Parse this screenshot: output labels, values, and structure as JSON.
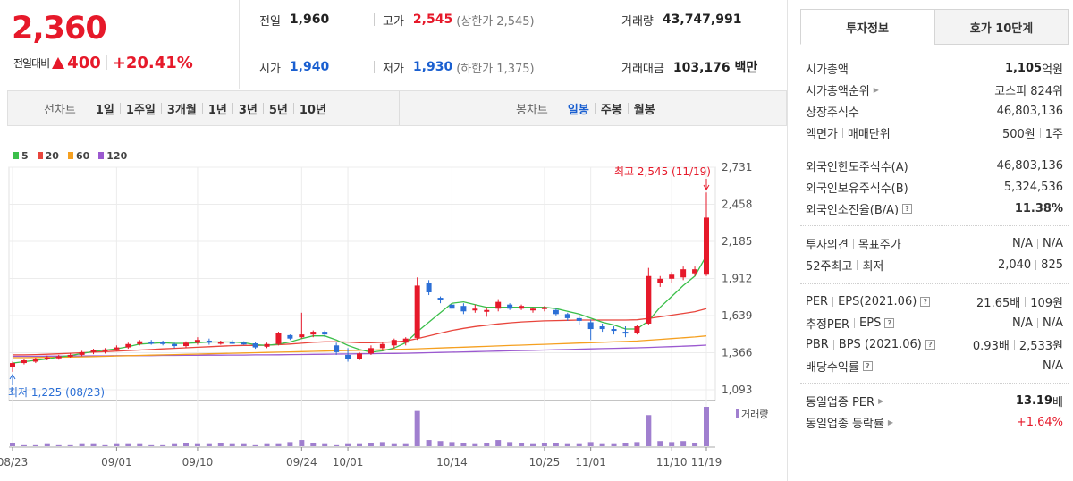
{
  "quote": {
    "price": "2,360",
    "change_label": "전일대비",
    "change": "400",
    "change_rate": "+20.41%",
    "prev_label": "전일",
    "prev": "1,960",
    "high_label": "고가",
    "high": "2,545",
    "upper_limit": "(상한가 2,545)",
    "volume_label": "거래량",
    "volume": "43,747,991",
    "open_label": "시가",
    "open": "1,940",
    "low_label": "저가",
    "low": "1,930",
    "lower_limit": "(하한가 1,375)",
    "amount_label": "거래대금",
    "amount": "103,176 백만"
  },
  "toolbar": {
    "line_label": "선차트",
    "line_periods": [
      "1일",
      "1주일",
      "3개월",
      "1년",
      "3년",
      "5년",
      "10년"
    ],
    "candle_label": "봉차트",
    "candle_periods": [
      "일봉",
      "주봉",
      "월봉"
    ],
    "active_candle": "일봉"
  },
  "legend": [
    {
      "label": "5",
      "color": "#3bbf4a"
    },
    {
      "label": "20",
      "color": "#e8453c"
    },
    {
      "label": "60",
      "color": "#f5a020"
    },
    {
      "label": "120",
      "color": "#9b59d0"
    }
  ],
  "chart_data": {
    "type": "candlestick",
    "y_ticks": [
      "2,731",
      "2,458",
      "2,185",
      "1,912",
      "1,639",
      "1,366",
      "1,093"
    ],
    "ylim": [
      1093,
      2731
    ],
    "x_labels": [
      "08/23",
      "09/01",
      "09/10",
      "09/24",
      "10/01",
      "10/14",
      "10/25",
      "11/01",
      "11/10",
      "11/19"
    ],
    "max_annotation": "최고 2,545 (11/19)",
    "min_annotation": "최저 1,225 (08/23)",
    "volume_label": "거래량",
    "up_color": "#e6192a",
    "down_color": "#2b6fd6",
    "candles": [
      {
        "o": 1260,
        "h": 1300,
        "l": 1225,
        "c": 1290
      },
      {
        "o": 1290,
        "h": 1320,
        "l": 1280,
        "c": 1310
      },
      {
        "o": 1300,
        "h": 1330,
        "l": 1290,
        "c": 1320
      },
      {
        "o": 1320,
        "h": 1345,
        "l": 1310,
        "c": 1330
      },
      {
        "o": 1325,
        "h": 1350,
        "l": 1315,
        "c": 1340
      },
      {
        "o": 1340,
        "h": 1365,
        "l": 1330,
        "c": 1350
      },
      {
        "o": 1350,
        "h": 1380,
        "l": 1340,
        "c": 1370
      },
      {
        "o": 1370,
        "h": 1395,
        "l": 1355,
        "c": 1385
      },
      {
        "o": 1380,
        "h": 1400,
        "l": 1360,
        "c": 1390
      },
      {
        "o": 1390,
        "h": 1420,
        "l": 1380,
        "c": 1405
      },
      {
        "o": 1405,
        "h": 1440,
        "l": 1395,
        "c": 1430
      },
      {
        "o": 1430,
        "h": 1460,
        "l": 1420,
        "c": 1450
      },
      {
        "o": 1445,
        "h": 1460,
        "l": 1425,
        "c": 1440
      },
      {
        "o": 1445,
        "h": 1455,
        "l": 1420,
        "c": 1430
      },
      {
        "o": 1430,
        "h": 1440,
        "l": 1400,
        "c": 1415
      },
      {
        "o": 1415,
        "h": 1450,
        "l": 1405,
        "c": 1440
      },
      {
        "o": 1440,
        "h": 1480,
        "l": 1425,
        "c": 1460
      },
      {
        "o": 1455,
        "h": 1470,
        "l": 1425,
        "c": 1440
      },
      {
        "o": 1440,
        "h": 1455,
        "l": 1425,
        "c": 1445
      },
      {
        "o": 1445,
        "h": 1460,
        "l": 1430,
        "c": 1440
      },
      {
        "o": 1440,
        "h": 1450,
        "l": 1425,
        "c": 1435
      },
      {
        "o": 1435,
        "h": 1445,
        "l": 1395,
        "c": 1405
      },
      {
        "o": 1410,
        "h": 1440,
        "l": 1400,
        "c": 1430
      },
      {
        "o": 1430,
        "h": 1520,
        "l": 1420,
        "c": 1510
      },
      {
        "o": 1495,
        "h": 1500,
        "l": 1460,
        "c": 1470
      },
      {
        "o": 1480,
        "h": 1660,
        "l": 1470,
        "c": 1500
      },
      {
        "o": 1500,
        "h": 1530,
        "l": 1480,
        "c": 1520
      },
      {
        "o": 1520,
        "h": 1530,
        "l": 1480,
        "c": 1500
      },
      {
        "o": 1420,
        "h": 1440,
        "l": 1350,
        "c": 1370
      },
      {
        "o": 1350,
        "h": 1400,
        "l": 1300,
        "c": 1320
      },
      {
        "o": 1320,
        "h": 1370,
        "l": 1310,
        "c": 1360
      },
      {
        "o": 1360,
        "h": 1420,
        "l": 1350,
        "c": 1400
      },
      {
        "o": 1400,
        "h": 1440,
        "l": 1380,
        "c": 1430
      },
      {
        "o": 1420,
        "h": 1470,
        "l": 1400,
        "c": 1460
      },
      {
        "o": 1440,
        "h": 1480,
        "l": 1420,
        "c": 1470
      },
      {
        "o": 1475,
        "h": 1920,
        "l": 1460,
        "c": 1860
      },
      {
        "o": 1880,
        "h": 1900,
        "l": 1790,
        "c": 1810
      },
      {
        "o": 1770,
        "h": 1780,
        "l": 1730,
        "c": 1760
      },
      {
        "o": 1720,
        "h": 1730,
        "l": 1680,
        "c": 1690
      },
      {
        "o": 1710,
        "h": 1730,
        "l": 1650,
        "c": 1670
      },
      {
        "o": 1680,
        "h": 1720,
        "l": 1660,
        "c": 1690
      },
      {
        "o": 1670,
        "h": 1700,
        "l": 1630,
        "c": 1680
      },
      {
        "o": 1690,
        "h": 1760,
        "l": 1670,
        "c": 1740
      },
      {
        "o": 1720,
        "h": 1730,
        "l": 1680,
        "c": 1690
      },
      {
        "o": 1690,
        "h": 1720,
        "l": 1680,
        "c": 1710
      },
      {
        "o": 1680,
        "h": 1700,
        "l": 1660,
        "c": 1690
      },
      {
        "o": 1690,
        "h": 1710,
        "l": 1670,
        "c": 1700
      },
      {
        "o": 1680,
        "h": 1690,
        "l": 1640,
        "c": 1650
      },
      {
        "o": 1650,
        "h": 1660,
        "l": 1600,
        "c": 1620
      },
      {
        "o": 1620,
        "h": 1640,
        "l": 1570,
        "c": 1600
      },
      {
        "o": 1590,
        "h": 1610,
        "l": 1460,
        "c": 1540
      },
      {
        "o": 1560,
        "h": 1580,
        "l": 1520,
        "c": 1540
      },
      {
        "o": 1540,
        "h": 1560,
        "l": 1500,
        "c": 1530
      },
      {
        "o": 1520,
        "h": 1560,
        "l": 1480,
        "c": 1510
      },
      {
        "o": 1510,
        "h": 1570,
        "l": 1500,
        "c": 1560
      },
      {
        "o": 1580,
        "h": 1990,
        "l": 1570,
        "c": 1930
      },
      {
        "o": 1880,
        "h": 1930,
        "l": 1850,
        "c": 1910
      },
      {
        "o": 1910,
        "h": 1960,
        "l": 1880,
        "c": 1940
      },
      {
        "o": 1920,
        "h": 2000,
        "l": 1900,
        "c": 1980
      },
      {
        "o": 1950,
        "h": 2000,
        "l": 1930,
        "c": 1980
      },
      {
        "o": 1940,
        "h": 2545,
        "l": 1930,
        "c": 2360
      }
    ],
    "volumes": [
      3,
      1,
      1,
      2,
      1,
      1,
      2,
      2,
      1,
      2,
      2,
      2,
      1,
      1,
      2,
      3,
      2,
      2,
      3,
      2,
      2,
      1,
      2,
      2,
      4,
      6,
      3,
      2,
      1,
      2,
      2,
      3,
      4,
      2,
      2,
      34,
      6,
      5,
      4,
      3,
      2,
      3,
      6,
      4,
      3,
      2,
      3,
      3,
      2,
      2,
      4,
      2,
      2,
      3,
      4,
      30,
      5,
      4,
      5,
      3,
      38
    ],
    "ma5": [
      1290,
      1300,
      1310,
      1320,
      1335,
      1345,
      1360,
      1375,
      1385,
      1395,
      1410,
      1430,
      1435,
      1440,
      1435,
      1435,
      1440,
      1445,
      1445,
      1445,
      1440,
      1425,
      1420,
      1430,
      1445,
      1470,
      1490,
      1490,
      1460,
      1420,
      1390,
      1370,
      1380,
      1400,
      1440,
      1520,
      1590,
      1660,
      1730,
      1740,
      1720,
      1700,
      1700,
      1700,
      1700,
      1700,
      1700,
      1690,
      1670,
      1650,
      1620,
      1590,
      1570,
      1540,
      1540,
      1600,
      1700,
      1780,
      1860,
      1930,
      2080
    ],
    "ma20": [
      1350,
      1350,
      1352,
      1355,
      1358,
      1362,
      1366,
      1370,
      1374,
      1378,
      1382,
      1386,
      1390,
      1394,
      1398,
      1402,
      1406,
      1410,
      1414,
      1418,
      1420,
      1420,
      1422,
      1425,
      1430,
      1436,
      1442,
      1446,
      1446,
      1444,
      1440,
      1440,
      1442,
      1446,
      1452,
      1470,
      1490,
      1510,
      1530,
      1545,
      1558,
      1568,
      1578,
      1586,
      1592,
      1596,
      1600,
      1602,
      1604,
      1606,
      1606,
      1606,
      1606,
      1606,
      1608,
      1618,
      1630,
      1642,
      1655,
      1668,
      1690
    ],
    "ma60": [
      1330,
      1330,
      1331,
      1332,
      1333,
      1334,
      1336,
      1338,
      1340,
      1342,
      1344,
      1346,
      1348,
      1350,
      1352,
      1354,
      1356,
      1358,
      1360,
      1362,
      1364,
      1366,
      1368,
      1370,
      1372,
      1374,
      1376,
      1378,
      1380,
      1382,
      1384,
      1386,
      1388,
      1390,
      1392,
      1395,
      1398,
      1401,
      1404,
      1407,
      1410,
      1413,
      1416,
      1419,
      1422,
      1425,
      1428,
      1431,
      1434,
      1437,
      1440,
      1443,
      1446,
      1449,
      1452,
      1458,
      1464,
      1470,
      1476,
      1482,
      1490
    ],
    "ma120": [
      1340,
      1340,
      1340,
      1341,
      1341,
      1342,
      1342,
      1343,
      1343,
      1344,
      1344,
      1345,
      1345,
      1346,
      1346,
      1347,
      1347,
      1348,
      1348,
      1349,
      1349,
      1350,
      1350,
      1351,
      1352,
      1353,
      1354,
      1355,
      1356,
      1357,
      1358,
      1359,
      1360,
      1361,
      1362,
      1364,
      1366,
      1368,
      1370,
      1372,
      1374,
      1376,
      1378,
      1380,
      1382,
      1384,
      1386,
      1388,
      1390,
      1392,
      1394,
      1396,
      1398,
      1400,
      1402,
      1405,
      1408,
      1411,
      1414,
      1417,
      1422
    ]
  },
  "side": {
    "tabs": [
      "투자정보",
      "호가 10단계"
    ],
    "sec1": [
      {
        "k": "시가총액",
        "v1": "1,105",
        "v2": "억원"
      },
      {
        "k": "시가총액순위",
        "v": "코스피 824위"
      },
      {
        "k": "상장주식수",
        "v": "46,803,136"
      },
      {
        "k": "액면가",
        "k2": "매매단위",
        "v": "500원",
        "v2": "1주"
      }
    ],
    "sec2": [
      {
        "k": "외국인한도주식수(A)",
        "v": "46,803,136"
      },
      {
        "k": "외국인보유주식수(B)",
        "v": "5,324,536"
      },
      {
        "k": "외국인소진율(B/A)",
        "v": "11.38%"
      }
    ],
    "sec3": [
      {
        "k": "투자의견",
        "k2": "목표주가",
        "v": "N/A",
        "v2": "N/A"
      },
      {
        "k": "52주최고",
        "k2": "최저",
        "v": "2,040",
        "v2": "825"
      }
    ],
    "sec4": [
      {
        "k": "PER",
        "k2": "EPS(2021.06)",
        "v": "21.65배",
        "v2": "109원"
      },
      {
        "k": "추정PER",
        "k2": "EPS",
        "v": "N/A",
        "v2": "N/A"
      },
      {
        "k": "PBR",
        "k2": "BPS (2021.06)",
        "v": "0.93배",
        "v2": "2,533원"
      },
      {
        "k": "배당수익률",
        "v": "N/A"
      }
    ],
    "sec5": [
      {
        "k": "동일업종 PER",
        "v1": "13.19",
        "v2": "배"
      },
      {
        "k": "동일업종 등락률",
        "v": "+1.64%"
      }
    ]
  }
}
